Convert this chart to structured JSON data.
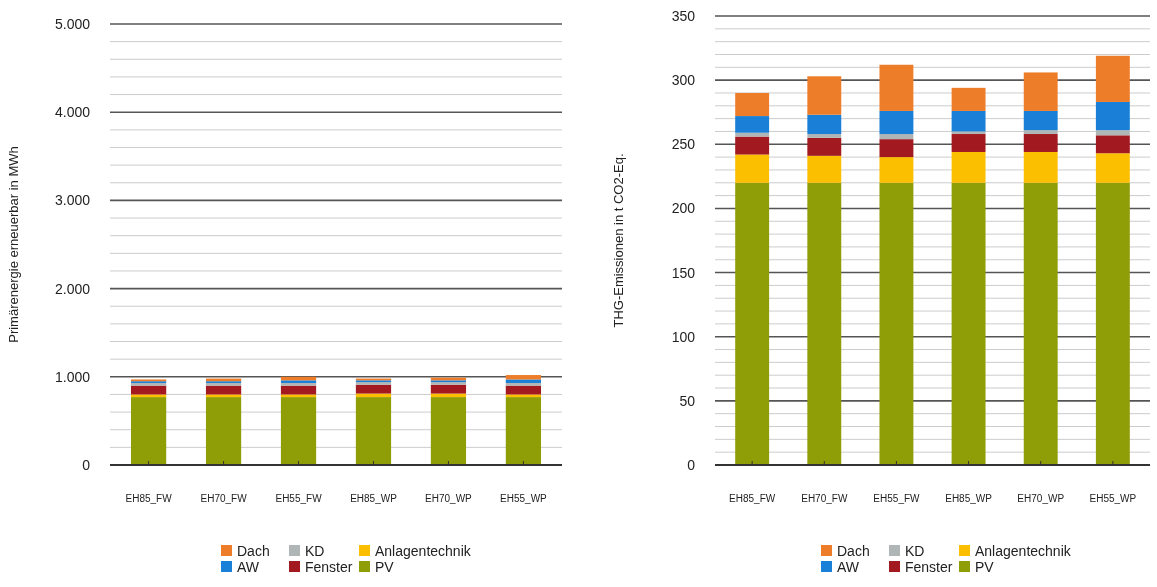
{
  "chart_data": [
    {
      "type": "bar",
      "stacked": true,
      "ylabel": "Primärenergie erneuerbar in MWh",
      "categories": [
        "EH85_FW",
        "EH70_FW",
        "EH55_FW",
        "EH85_WP",
        "EH70_WP",
        "EH55_WP"
      ],
      "ylim": [
        0,
        5000
      ],
      "yticks": [
        {
          "value": 0,
          "label": "0"
        },
        {
          "value": 200,
          "label": null
        },
        {
          "value": 400,
          "label": null
        },
        {
          "value": 600,
          "label": null
        },
        {
          "value": 800,
          "label": null
        },
        {
          "value": 1000,
          "label": "1.000"
        },
        {
          "value": 1200,
          "label": null
        },
        {
          "value": 1400,
          "label": null
        },
        {
          "value": 1600,
          "label": null
        },
        {
          "value": 1800,
          "label": null
        },
        {
          "value": 2000,
          "label": "2.000"
        },
        {
          "value": 2200,
          "label": null
        },
        {
          "value": 2400,
          "label": null
        },
        {
          "value": 2600,
          "label": null
        },
        {
          "value": 2800,
          "label": null
        },
        {
          "value": 3000,
          "label": "3.000"
        },
        {
          "value": 3200,
          "label": null
        },
        {
          "value": 3400,
          "label": null
        },
        {
          "value": 3600,
          "label": null
        },
        {
          "value": 3800,
          "label": null
        },
        {
          "value": 4000,
          "label": "4.000"
        },
        {
          "value": 4200,
          "label": null
        },
        {
          "value": 4400,
          "label": null
        },
        {
          "value": 4600,
          "label": null
        },
        {
          "value": 4800,
          "label": null
        },
        {
          "value": 5000,
          "label": "5.000"
        }
      ],
      "grid": "y",
      "legend": "bottom",
      "series": [
        {
          "name": "PV",
          "color": "#8f9e06",
          "values": [
            770,
            770,
            770,
            770,
            770,
            770
          ]
        },
        {
          "name": "Anlagentechnik",
          "color": "#fbbf00",
          "values": [
            30,
            30,
            30,
            40,
            40,
            30
          ]
        },
        {
          "name": "Fenster",
          "color": "#a21a20",
          "values": [
            100,
            100,
            100,
            100,
            100,
            100
          ]
        },
        {
          "name": "KD",
          "color": "#b0b5b5",
          "values": [
            30,
            30,
            30,
            30,
            30,
            30
          ]
        },
        {
          "name": "AW",
          "color": "#1a7fd6",
          "values": [
            20,
            20,
            30,
            20,
            20,
            40
          ]
        },
        {
          "name": "Dach",
          "color": "#ee7d2a",
          "values": [
            20,
            30,
            40,
            20,
            30,
            50
          ]
        }
      ]
    },
    {
      "type": "bar",
      "stacked": true,
      "ylabel": "THG-Emissionen in t CO2-Eq.",
      "categories": [
        "EH85_FW",
        "EH70_FW",
        "EH55_FW",
        "EH85_WP",
        "EH70_WP",
        "EH55_WP"
      ],
      "ylim": [
        0,
        350
      ],
      "yticks": [
        {
          "value": 0,
          "label": "0"
        },
        {
          "value": 10,
          "label": null
        },
        {
          "value": 20,
          "label": null
        },
        {
          "value": 30,
          "label": null
        },
        {
          "value": 40,
          "label": null
        },
        {
          "value": 50,
          "label": "50"
        },
        {
          "value": 60,
          "label": null
        },
        {
          "value": 70,
          "label": null
        },
        {
          "value": 80,
          "label": null
        },
        {
          "value": 90,
          "label": null
        },
        {
          "value": 100,
          "label": "100"
        },
        {
          "value": 110,
          "label": null
        },
        {
          "value": 120,
          "label": null
        },
        {
          "value": 130,
          "label": null
        },
        {
          "value": 140,
          "label": null
        },
        {
          "value": 150,
          "label": "150"
        },
        {
          "value": 160,
          "label": null
        },
        {
          "value": 170,
          "label": null
        },
        {
          "value": 180,
          "label": null
        },
        {
          "value": 190,
          "label": null
        },
        {
          "value": 200,
          "label": "200"
        },
        {
          "value": 210,
          "label": null
        },
        {
          "value": 220,
          "label": null
        },
        {
          "value": 230,
          "label": null
        },
        {
          "value": 240,
          "label": null
        },
        {
          "value": 250,
          "label": "250"
        },
        {
          "value": 260,
          "label": null
        },
        {
          "value": 270,
          "label": null
        },
        {
          "value": 280,
          "label": null
        },
        {
          "value": 290,
          "label": null
        },
        {
          "value": 300,
          "label": "300"
        },
        {
          "value": 310,
          "label": null
        },
        {
          "value": 320,
          "label": null
        },
        {
          "value": 330,
          "label": null
        },
        {
          "value": 340,
          "label": null
        },
        {
          "value": 350,
          "label": "350"
        }
      ],
      "grid": "y",
      "legend": "bottom",
      "series": [
        {
          "name": "PV",
          "color": "#8f9e06",
          "values": [
            220,
            220,
            220,
            220,
            220,
            220
          ]
        },
        {
          "name": "Anlagentechnik",
          "color": "#fbbf00",
          "values": [
            22,
            21,
            20,
            24,
            24,
            23
          ]
        },
        {
          "name": "Fenster",
          "color": "#a21a20",
          "values": [
            14,
            14,
            14,
            14,
            14,
            14
          ]
        },
        {
          "name": "KD",
          "color": "#b0b5b5",
          "values": [
            3,
            3,
            4,
            2,
            3,
            4
          ]
        },
        {
          "name": "AW",
          "color": "#1a7fd6",
          "values": [
            13,
            15,
            18,
            16,
            15,
            22
          ]
        },
        {
          "name": "Dach",
          "color": "#ee7d2a",
          "values": [
            18,
            30,
            36,
            18,
            30,
            36
          ]
        }
      ]
    }
  ]
}
